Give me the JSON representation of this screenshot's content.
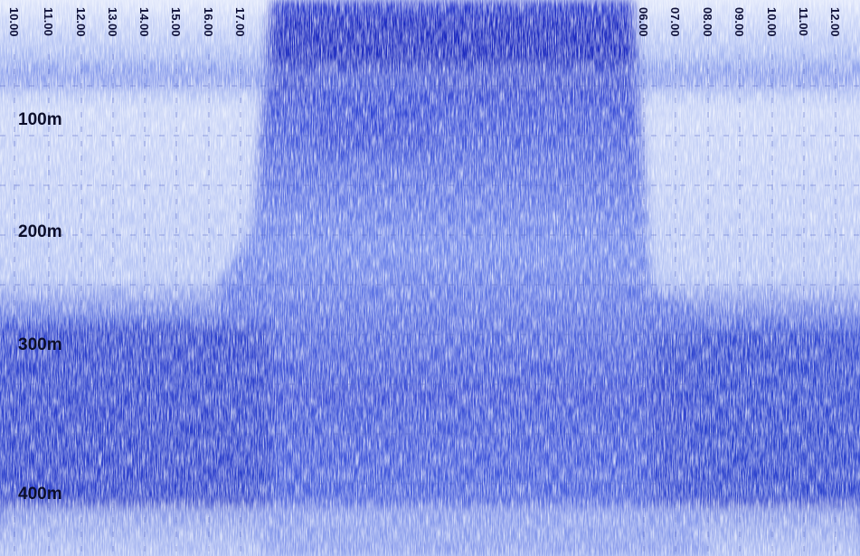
{
  "time_labels": [
    "10.00",
    "11.00",
    "12.00",
    "13.00",
    "14.00",
    "15.00",
    "16.00",
    "17.00",
    "06.00",
    "07.00",
    "08.00",
    "09.00",
    "10.00",
    "11.00",
    "12.00"
  ],
  "depth_labels": [
    "100m",
    "200m",
    "300m",
    "400m"
  ]
}
